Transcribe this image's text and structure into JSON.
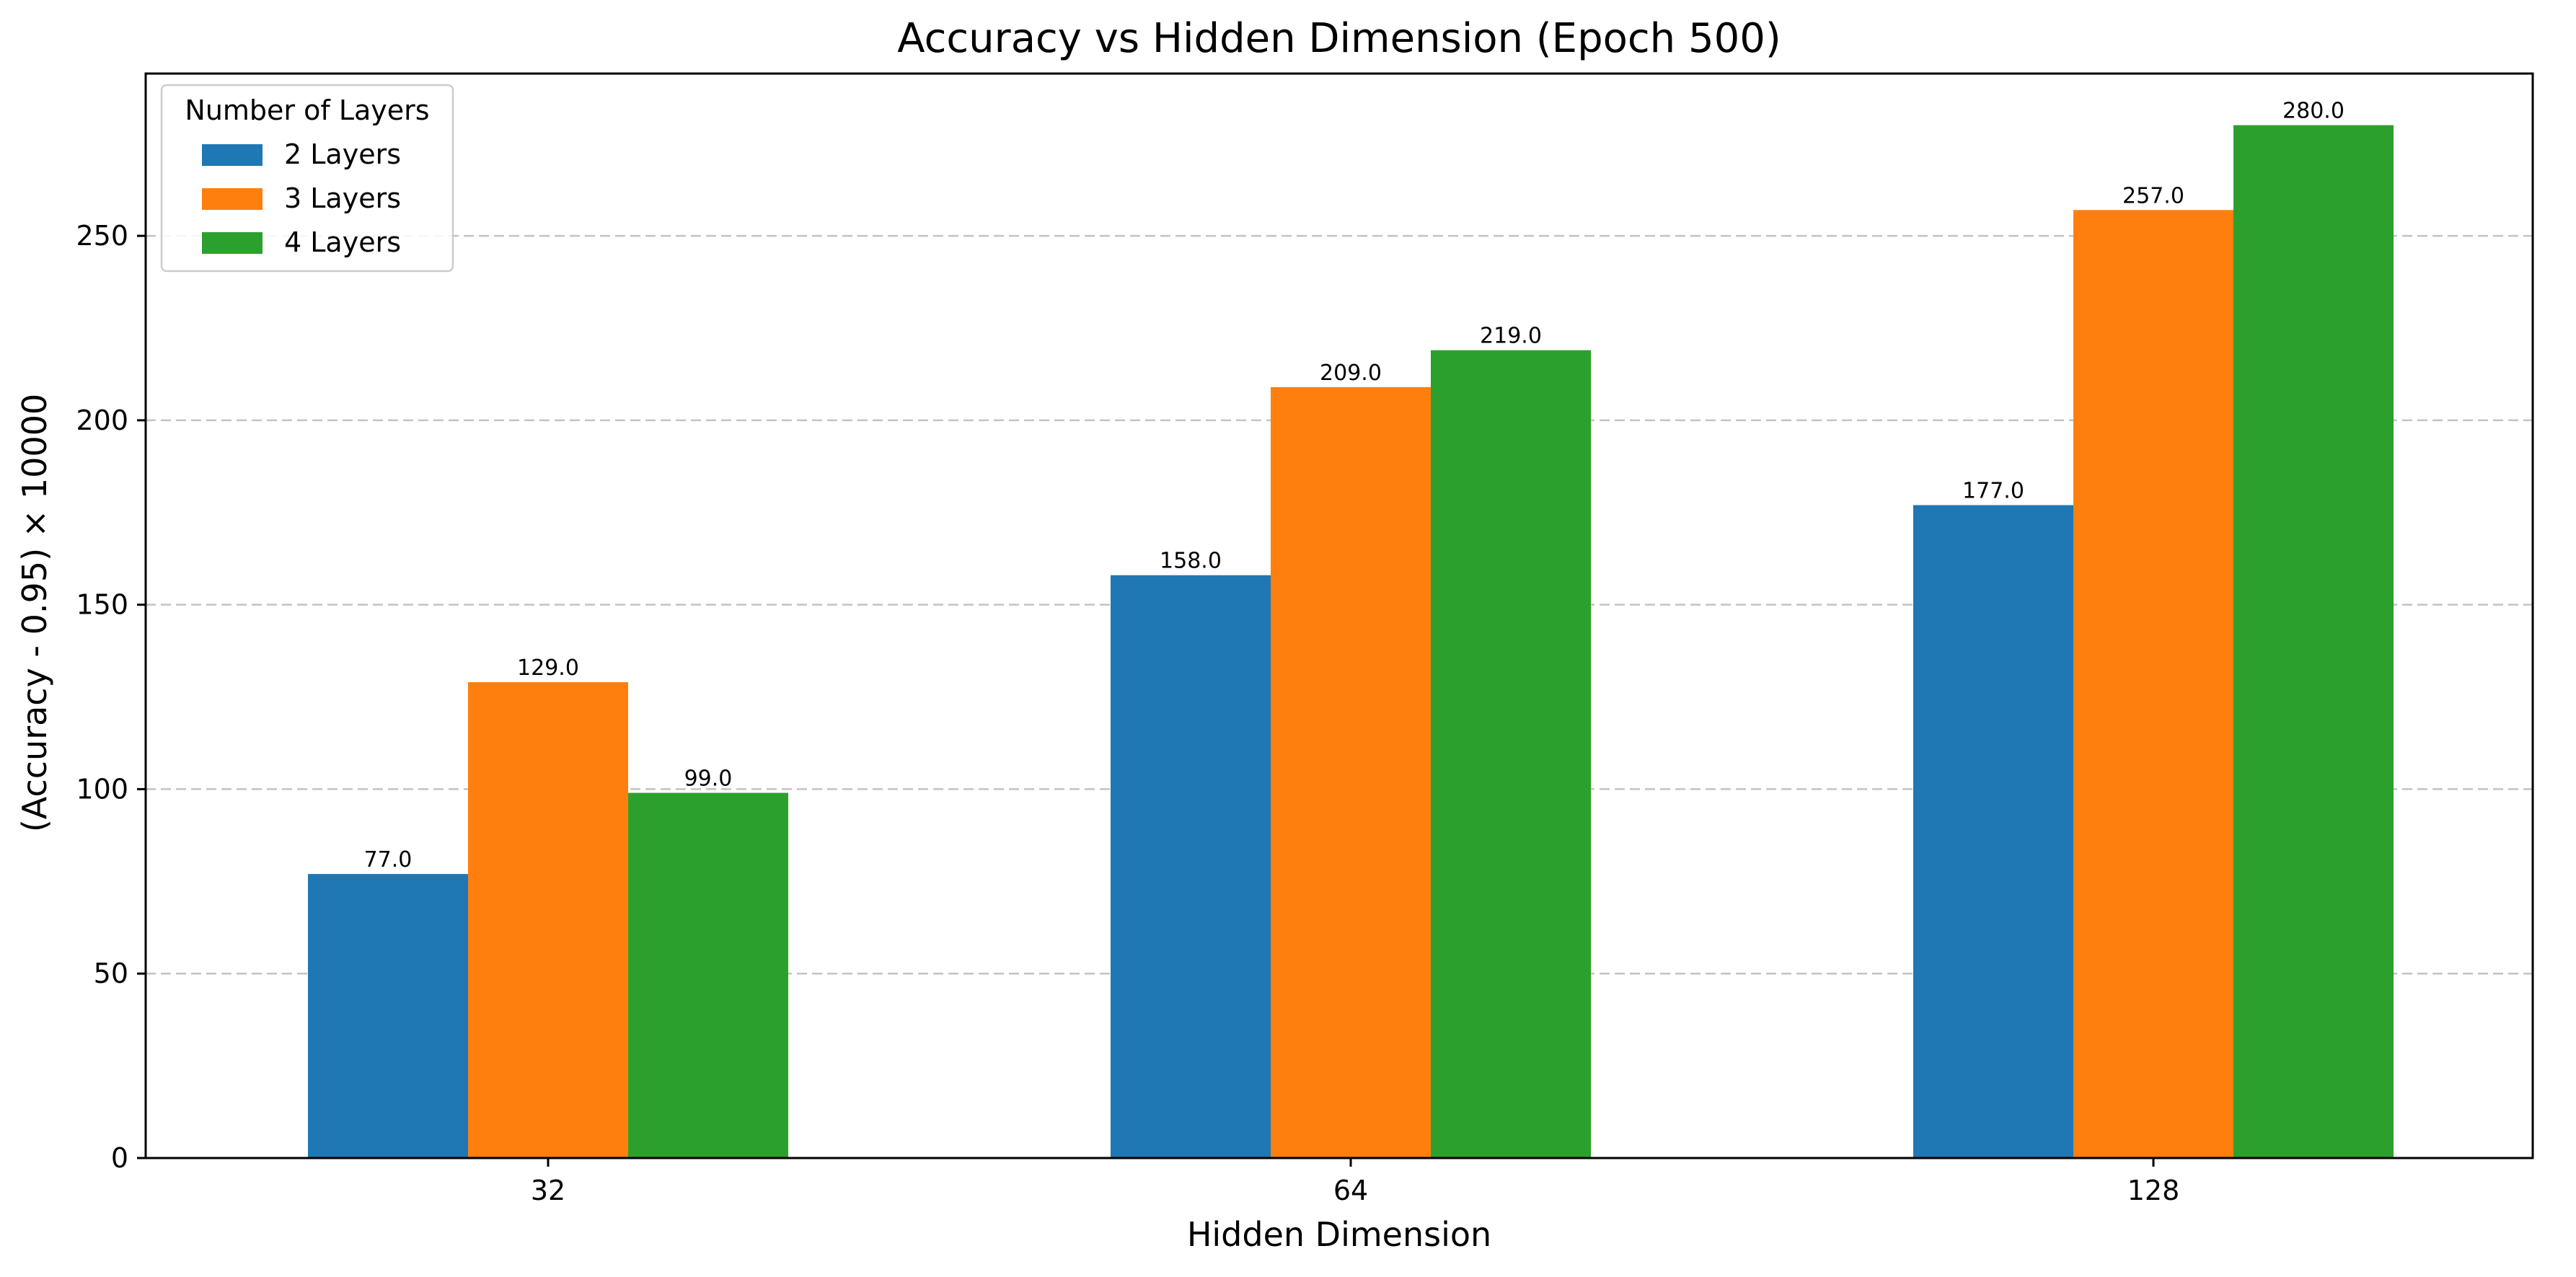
{
  "chart_data": {
    "type": "bar",
    "title": "Accuracy vs Hidden Dimension (Epoch 500)",
    "xlabel": "Hidden Dimension",
    "ylabel": "(Accuracy - 0.95) × 10000",
    "categories": [
      "32",
      "64",
      "128"
    ],
    "series": [
      {
        "name": "2 Layers",
        "values": [
          77.0,
          158.0,
          177.0
        ],
        "color": "#1f77b4",
        "labels": [
          "77.0",
          "158.0",
          "177.0"
        ]
      },
      {
        "name": "3 Layers",
        "values": [
          129.0,
          209.0,
          257.0
        ],
        "color": "#ff7f0e",
        "labels": [
          "129.0",
          "209.0",
          "257.0"
        ]
      },
      {
        "name": "4 Layers",
        "values": [
          99.0,
          219.0,
          280.0
        ],
        "color": "#2ca02c",
        "labels": [
          "99.0",
          "219.0",
          "280.0"
        ]
      }
    ],
    "ylim": [
      0,
      294
    ],
    "yticks": [
      0,
      50,
      100,
      150,
      200,
      250
    ],
    "ytick_labels": [
      "0",
      "50",
      "100",
      "150",
      "200",
      "250"
    ],
    "grid": "y-dashed",
    "legend": {
      "title": "Number of Layers",
      "placement": "top-left"
    }
  }
}
